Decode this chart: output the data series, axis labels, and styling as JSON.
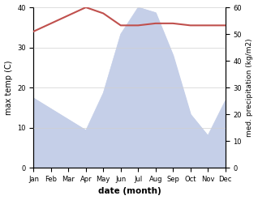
{
  "months": [
    "Jan",
    "Feb",
    "Mar",
    "Apr",
    "May",
    "Jun",
    "Jul",
    "Aug",
    "Sep",
    "Oct",
    "Nov",
    "Dec"
  ],
  "temp": [
    34.0,
    36.0,
    38.0,
    40.0,
    38.5,
    35.5,
    35.5,
    36.0,
    36.0,
    35.5,
    35.5,
    35.5
  ],
  "precip": [
    26,
    22,
    18,
    14,
    28,
    50,
    60,
    58,
    42,
    20,
    12,
    25
  ],
  "temp_color": "#c0504d",
  "precip_fill_color": "#c5cfe8",
  "ylabel_left": "max temp (C)",
  "ylabel_right": "med. precipitation (kg/m2)",
  "xlabel": "date (month)",
  "ylim_left": [
    0,
    40
  ],
  "ylim_right": [
    0,
    60
  ],
  "yticks_left": [
    0,
    10,
    20,
    30,
    40
  ],
  "yticks_right": [
    0,
    10,
    20,
    30,
    40,
    50,
    60
  ],
  "bg_color": "#ffffff",
  "grid_color": "#d0d0d0"
}
